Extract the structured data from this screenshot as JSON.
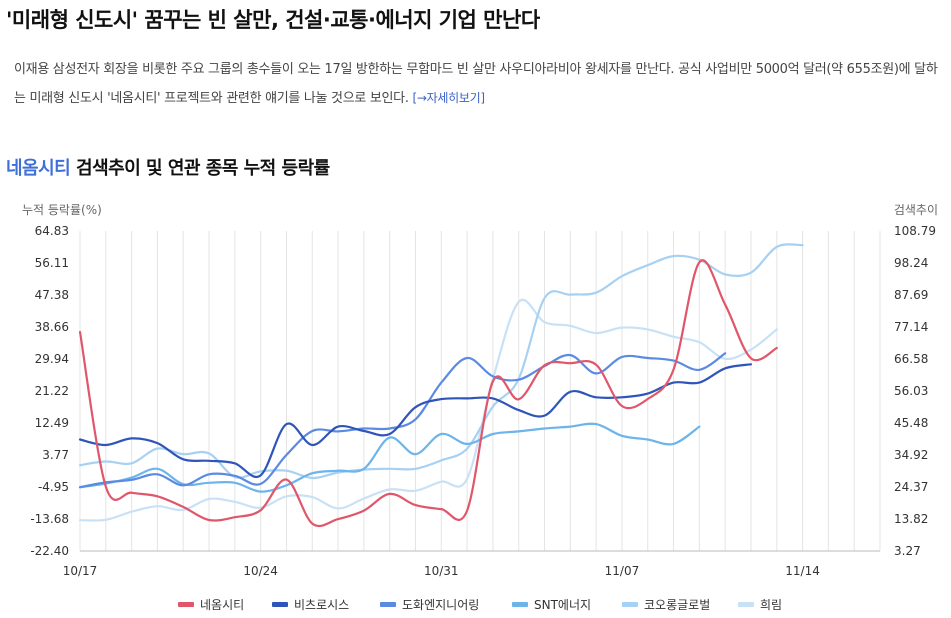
{
  "article": {
    "headline": "'미래형 신도시' 꿈꾸는 빈 살만, 건설·교통·에너지 기업 만난다",
    "summary": "이재용 삼성전자 회장을 비롯한 주요 그룹의 총수들이 오는 17일 방한하는 무함마드 빈 살만 사우디아라비아 왕세자를 만난다. 공식 사업비만 5000억 달러(약 655조원)에 달하는 미래형 신도시 '네옴시티' 프로젝트와 관련한 얘기를 나눌 것으로 보인다.",
    "more_link": "[→자세히보기]"
  },
  "chart_title": {
    "highlight": "네옴시티",
    "rest": " 검색추이 및 연관 종목 누적 등락률"
  },
  "chart_data": {
    "type": "line",
    "left_unit": "누적 등락률(%)",
    "right_unit": "검색추이",
    "left_ticks": [
      "64.83",
      "56.11",
      "47.38",
      "38.66",
      "29.94",
      "21.22",
      "12.49",
      "3.77",
      "-4.95",
      "-13.68",
      "-22.40"
    ],
    "right_ticks": [
      "108.79",
      "98.24",
      "87.69",
      "77.14",
      "66.58",
      "56.03",
      "45.48",
      "34.92",
      "24.37",
      "13.82",
      "3.27"
    ],
    "ylim": [
      -22.4,
      64.83
    ],
    "y2lim": [
      3.27,
      108.79
    ],
    "x_labels": [
      "10/17",
      "10/24",
      "10/31",
      "11/07",
      "11/14"
    ],
    "x_label_index": [
      0,
      7,
      14,
      21,
      28
    ],
    "num_days": 32,
    "grid": "vertical",
    "legend_position": "bottom",
    "series": [
      {
        "name": "네옴시티",
        "color": "#e0566a",
        "axis": "right",
        "values": [
          75.5,
          24.5,
          22.5,
          21.3,
          17.8,
          13.5,
          14.4,
          16.7,
          26.8,
          12.3,
          13.8,
          16.6,
          22.1,
          18.4,
          17.1,
          16.6,
          59.2,
          53.3,
          64.5,
          65.2,
          64.7,
          51.1,
          53.4,
          63.1,
          98.5,
          84.5,
          66.8,
          70.2,
          null,
          null,
          null,
          null
        ]
      },
      {
        "name": "비츠로시스",
        "color": "#2f55b8",
        "values": [
          8.0,
          6.5,
          8.3,
          7.0,
          2.6,
          2.2,
          1.5,
          -1.8,
          12.2,
          6.5,
          11.5,
          10.3,
          9.5,
          16.8,
          19.0,
          19.2,
          19.2,
          16.0,
          14.5,
          21.0,
          19.5,
          19.5,
          20.5,
          23.5,
          23.5,
          27.4,
          28.5,
          null,
          null,
          null,
          null,
          null
        ]
      },
      {
        "name": "도화엔지니어링",
        "color": "#5b8ae3",
        "values": [
          -5.0,
          -3.7,
          -3.0,
          -1.5,
          -4.5,
          -1.5,
          -1.9,
          -4.1,
          3.8,
          10.3,
          10.2,
          11.0,
          11.0,
          13.5,
          23.5,
          30.2,
          25.2,
          24.3,
          28.0,
          31.0,
          26.0,
          30.5,
          30.2,
          29.5,
          27.0,
          31.5,
          null,
          null,
          null,
          null,
          null,
          null
        ]
      },
      {
        "name": "SNT에너지",
        "color": "#6cb4ea",
        "values": [
          -5.0,
          -4.0,
          -2.4,
          0.0,
          -4.2,
          -3.8,
          -3.8,
          -6.2,
          -4.5,
          -1.2,
          -0.5,
          0.0,
          8.5,
          4.0,
          9.5,
          6.8,
          9.5,
          10.2,
          11.0,
          11.5,
          12.2,
          9.0,
          8.0,
          6.8,
          11.5,
          null,
          null,
          null,
          null,
          null,
          null,
          null
        ]
      },
      {
        "name": "코오롱글로벌",
        "color": "#a6d1f3",
        "values": [
          1.0,
          2.0,
          1.5,
          5.5,
          4.0,
          4.2,
          -2.2,
          -0.7,
          -0.5,
          -2.5,
          -1.0,
          -0.2,
          0.0,
          0.0,
          2.3,
          5.5,
          17.0,
          24.5,
          46.5,
          47.5,
          48.0,
          52.5,
          55.5,
          58.0,
          57.0,
          53.0,
          53.5,
          60.5,
          61.0,
          null,
          null,
          null
        ]
      },
      {
        "name": "희림",
        "color": "#c9e1f5",
        "values": [
          -14.0,
          -13.9,
          -11.7,
          -10.2,
          -11.2,
          -8.2,
          -9.0,
          -10.6,
          -7.5,
          -7.7,
          -10.8,
          -8.1,
          -5.6,
          -6.0,
          -3.5,
          -2.7,
          24.5,
          45.5,
          40.0,
          39.0,
          37.0,
          38.5,
          38.0,
          36.0,
          34.5,
          30.0,
          32.5,
          38.0,
          null,
          null,
          null,
          null
        ]
      }
    ]
  }
}
